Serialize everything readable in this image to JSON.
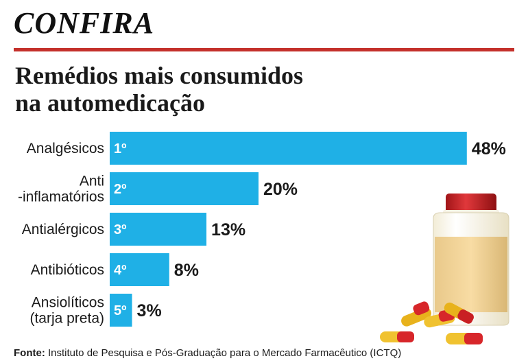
{
  "header": {
    "kicker": "CONFIRA",
    "title_lines": [
      "Remédios mais consumidos",
      "na automedicação"
    ]
  },
  "chart_data": {
    "type": "bar",
    "orientation": "horizontal",
    "categories": [
      [
        "Analgésicos"
      ],
      [
        "Anti",
        "-inflamatórios"
      ],
      [
        "Antialérgicos"
      ],
      [
        "Antibióticos"
      ],
      [
        "Ansiolíticos",
        "(tarja preta)"
      ]
    ],
    "ranks": [
      "1º",
      "2º",
      "3º",
      "4º",
      "5º"
    ],
    "values": [
      48,
      20,
      13,
      8,
      3
    ],
    "value_labels": [
      "48%",
      "20%",
      "13%",
      "8%",
      "3%"
    ],
    "unit": "%",
    "bar_color": "#1fb0e6",
    "grid": false,
    "legend": "none"
  },
  "footer": {
    "source_label": "Fonte:",
    "source_text": " Instituto de Pesquisa e Pós-Graduação para o Mercado Farmacêutico (ICTQ)"
  },
  "colors": {
    "accent": "#c4302b",
    "bar": "#1fb0e6"
  },
  "illustration": {
    "icon": "pill-bottle-with-capsules-icon"
  }
}
